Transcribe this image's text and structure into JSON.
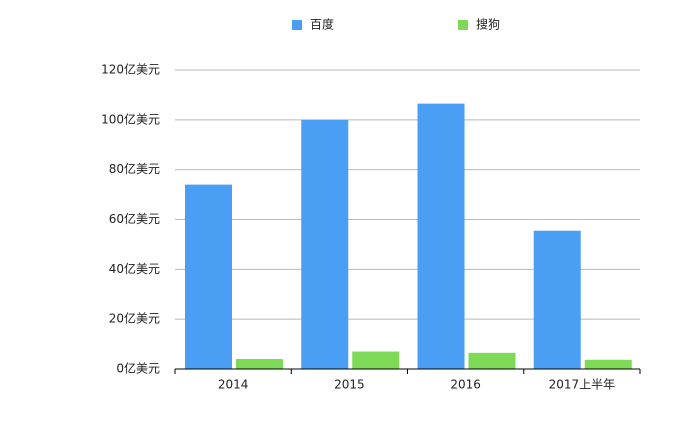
{
  "chart_data": {
    "type": "bar",
    "categories": [
      "2014",
      "2015",
      "2016",
      "2017上半年"
    ],
    "series": [
      {
        "name": "百度",
        "color": "#4a9ff5",
        "values": [
          74,
          100,
          106.5,
          55.5
        ]
      },
      {
        "name": "搜狗",
        "color": "#7ed957",
        "values": [
          4,
          7,
          6.5,
          3.7
        ]
      }
    ],
    "ylim": [
      0,
      120
    ],
    "yticks": [
      {
        "value": 0,
        "label": "0亿美元"
      },
      {
        "value": 20,
        "label": "20亿美元"
      },
      {
        "value": 40,
        "label": "40亿美元"
      },
      {
        "value": 60,
        "label": "60亿美元"
      },
      {
        "value": 80,
        "label": "80亿美元"
      },
      {
        "value": 100,
        "label": "100亿美元"
      },
      {
        "value": 120,
        "label": "120亿美元"
      }
    ],
    "grid": true,
    "legend": "top"
  }
}
